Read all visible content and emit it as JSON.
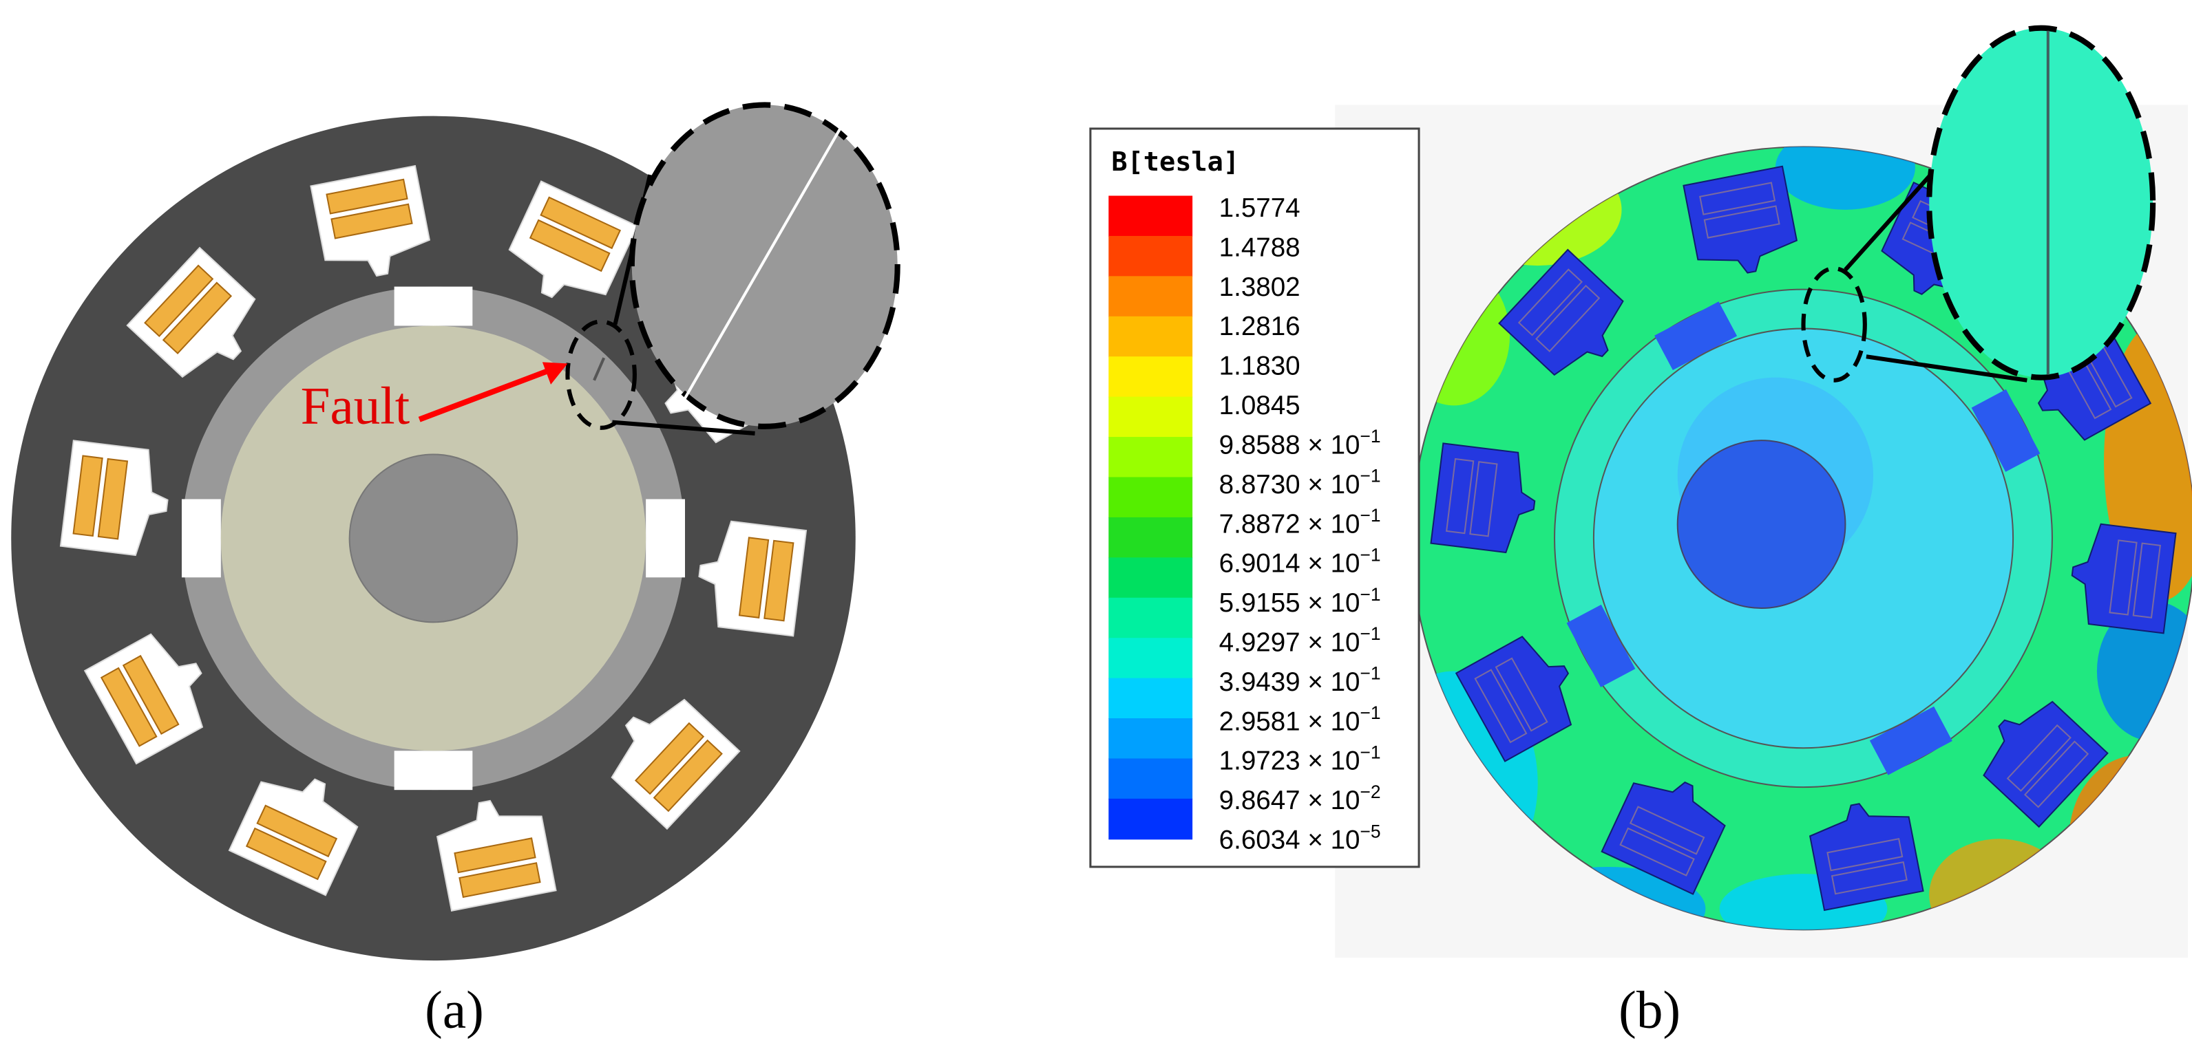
{
  "panel_a": {
    "fault_label": "Fault",
    "caption": "(a)"
  },
  "panel_b": {
    "caption": "(b)",
    "legend": {
      "title": "B[tesla]",
      "levels": [
        {
          "text": "1.5774"
        },
        {
          "text": "1.4788"
        },
        {
          "text": "1.3802"
        },
        {
          "text": "1.2816"
        },
        {
          "text": "1.1830"
        },
        {
          "text": "1.0845"
        },
        {
          "mantissa": "9.8588 × 10",
          "exponent": "−1"
        },
        {
          "mantissa": "8.8730 × 10",
          "exponent": "−1"
        },
        {
          "mantissa": "7.8872 × 10",
          "exponent": "−1"
        },
        {
          "mantissa": "6.9014 × 10",
          "exponent": "−1"
        },
        {
          "mantissa": "5.9155 × 10",
          "exponent": "−1"
        },
        {
          "mantissa": "4.9297 × 10",
          "exponent": "−1"
        },
        {
          "mantissa": "3.9439 × 10",
          "exponent": "−1"
        },
        {
          "mantissa": "2.9581 × 10",
          "exponent": "−1"
        },
        {
          "mantissa": "1.9723 × 10",
          "exponent": "−1"
        },
        {
          "mantissa": "9.8647 × 10",
          "exponent": "−2"
        },
        {
          "mantissa": "6.6034 × 10",
          "exponent": "−5"
        }
      ],
      "colors": [
        "#ff0000",
        "#ff4400",
        "#ff8800",
        "#ffbb00",
        "#ffee00",
        "#ddff00",
        "#99ff00",
        "#55ee00",
        "#22dd22",
        "#00e060",
        "#00f0a0",
        "#00f0d0",
        "#00d0ff",
        "#00a0ff",
        "#0070ff",
        "#0033ff"
      ]
    }
  }
}
